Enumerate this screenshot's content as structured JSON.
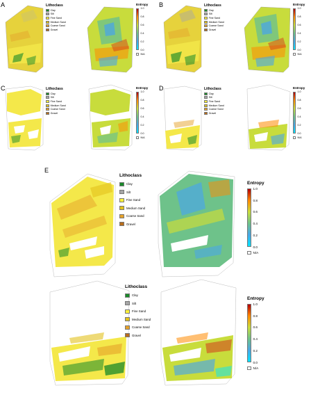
{
  "panels": [
    {
      "id": "A",
      "label": "A"
    },
    {
      "id": "B",
      "label": "B"
    },
    {
      "id": "C",
      "label": "C"
    },
    {
      "id": "D",
      "label": "D"
    },
    {
      "id": "E",
      "label": "E"
    }
  ],
  "lithoclass_legend": {
    "title": "Lithoclass",
    "items": [
      {
        "label": "Clay",
        "color": "#1a8a2a"
      },
      {
        "label": "Silt",
        "color": "#a6a6a6"
      },
      {
        "label": "Fine Sand",
        "color": "#fff23a"
      },
      {
        "label": "Medium Sand",
        "color": "#e2c21c"
      },
      {
        "label": "Coarse Sand",
        "color": "#e5a12a"
      },
      {
        "label": "Gravel",
        "color": "#b86d1c"
      }
    ]
  },
  "entropy_legend": {
    "title": "Entropy",
    "ticks": [
      "1.0",
      "0.8",
      "0.6",
      "0.4",
      "0.2",
      "0.0"
    ],
    "na_label": "N/A",
    "colors": {
      "high": "#b30000",
      "mid_high": "#ff8a00",
      "mid": "#c8dc3c",
      "mid_low": "#6ec28a",
      "low": "#4aa6e6",
      "zero": "#00e5ff"
    }
  }
}
